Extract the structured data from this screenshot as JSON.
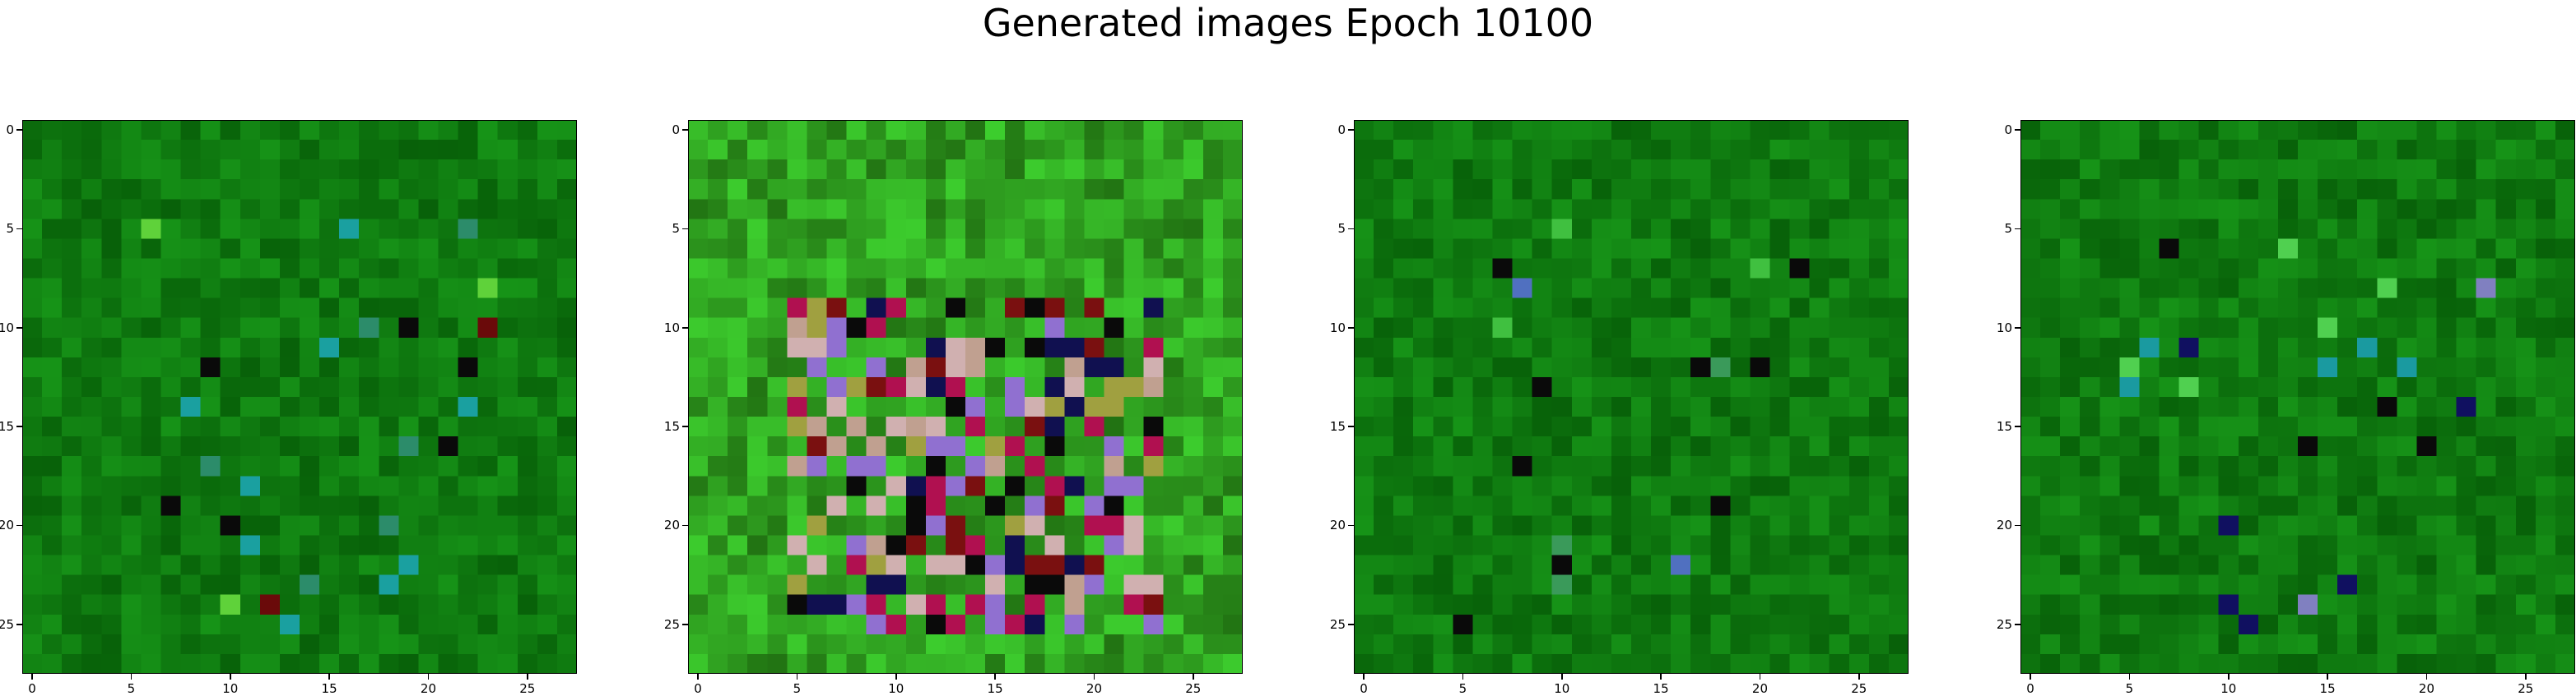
{
  "figure": {
    "title": "Generated images Epoch 10100"
  },
  "chart_data": [
    {
      "type": "heatmap",
      "content": "image",
      "grid": [
        28,
        28
      ],
      "dominant_color": "#0f7a10",
      "accent_pixels": [
        "#2c8c6a",
        "#1aa0a0",
        "#5fd23a",
        "#0a0a0a",
        "#6a0a0a"
      ],
      "xticks": [
        0,
        5,
        10,
        15,
        20,
        25
      ],
      "yticks": [
        0,
        5,
        10,
        15,
        20,
        25
      ],
      "xlim": [
        -0.5,
        27.5
      ],
      "ylim": [
        27.5,
        -0.5
      ]
    },
    {
      "type": "heatmap",
      "content": "image",
      "grid": [
        28,
        28
      ],
      "dominant_color": "#2fa020",
      "accent_pixels": [
        "#0a0a0a",
        "#9070d0",
        "#c0a090",
        "#7a1010",
        "#d0b0b0",
        "#a0a040",
        "#b01050",
        "#101050"
      ],
      "xticks": [
        0,
        5,
        10,
        15,
        20,
        25
      ],
      "yticks": [
        0,
        5,
        10,
        15,
        20,
        25
      ],
      "xlim": [
        -0.5,
        27.5
      ],
      "ylim": [
        27.5,
        -0.5
      ]
    },
    {
      "type": "heatmap",
      "content": "image",
      "grid": [
        28,
        28
      ],
      "dominant_color": "#0f7a10",
      "accent_pixels": [
        "#0a0a0a",
        "#5070c0",
        "#3a9a5a",
        "#40c040"
      ],
      "xticks": [
        0,
        5,
        10,
        15,
        20,
        25
      ],
      "yticks": [
        0,
        5,
        10,
        15,
        20,
        25
      ],
      "xlim": [
        -0.5,
        27.5
      ],
      "ylim": [
        27.5,
        -0.5
      ]
    },
    {
      "type": "heatmap",
      "content": "image",
      "grid": [
        28,
        28
      ],
      "dominant_color": "#0f7a10",
      "accent_pixels": [
        "#101060",
        "#0a0a0a",
        "#8080c0",
        "#50d050",
        "#1a9aa0"
      ],
      "xticks": [
        0,
        5,
        10,
        15,
        20,
        25
      ],
      "yticks": [
        0,
        5,
        10,
        15,
        20,
        25
      ],
      "xlim": [
        -0.5,
        27.5
      ],
      "ylim": [
        27.5,
        -0.5
      ]
    }
  ]
}
